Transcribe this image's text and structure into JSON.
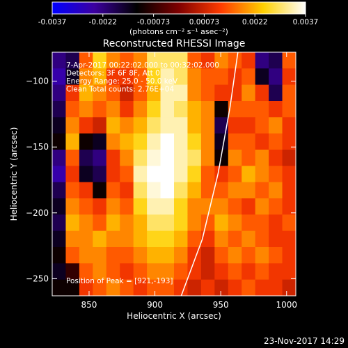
{
  "chart_data": {
    "type": "heatmap",
    "title": "Reconstructed RHESSI Image",
    "colorbar": {
      "min": -0.0037,
      "max": 0.0037,
      "tick_labels": [
        "-0.0037",
        "-0.0022",
        "-0.00073",
        "0.00073",
        "0.0022",
        "0.0037"
      ],
      "units_label": "(photons cm⁻² s⁻¹ asec⁻²)",
      "colormap": [
        "#0000ff",
        "#3c00a0",
        "#000000",
        "#7f0000",
        "#ff3c00",
        "#ffd000",
        "#ffffff"
      ]
    },
    "annotations": [
      "7-Apr-2017 00:22:02.000 to 00:32:02.000",
      "Detectors: 3F 6F 8F, Att 0",
      "Energy Range: 25.0 - 50.0 keV",
      "Clean    Total counts: 2.76E+04"
    ],
    "peak_label": "Position of Peak = [921,-193]",
    "peak": {
      "x": 921,
      "y": -193
    },
    "xlabel": "Heliocentric X (arcsec)",
    "ylabel": "Heliocentric Y (arcsec)",
    "xlim": [
      822,
      1007
    ],
    "ylim": [
      -263,
      -78
    ],
    "xticks": [
      850,
      900,
      950,
      1000
    ],
    "yticks": [
      -100,
      -150,
      -200,
      -250
    ],
    "limb_line": [
      [
        920,
        -263
      ],
      [
        936,
        -220
      ],
      [
        948,
        -170
      ],
      [
        957,
        -120
      ],
      [
        963,
        -78
      ]
    ],
    "intensity_grid": [
      [
        -0.6,
        -0.5,
        0.4,
        0.7,
        0.5,
        0.4,
        0.5,
        0.8,
        0.8,
        0.8,
        0.4,
        0.3,
        0.5,
        0.4,
        0.3,
        -0.6,
        -0.5,
        0.4
      ],
      [
        -0.7,
        -0.4,
        0.5,
        0.6,
        0.3,
        0.3,
        0.4,
        0.7,
        0.9,
        0.8,
        0.5,
        0.4,
        0.4,
        0.3,
        0.4,
        -0.4,
        -0.6,
        0.3
      ],
      [
        -0.6,
        0.3,
        0.6,
        0.5,
        0.4,
        0.2,
        0.4,
        0.6,
        0.9,
        0.9,
        0.5,
        0.4,
        0.3,
        0.3,
        0.5,
        0.3,
        -0.5,
        0.4
      ],
      [
        -0.5,
        0.4,
        0.5,
        0.4,
        0.5,
        0.3,
        0.5,
        0.7,
        0.9,
        0.8,
        0.6,
        0.5,
        -0.3,
        0.4,
        0.4,
        0.4,
        0.3,
        0.4
      ],
      [
        -0.4,
        0.5,
        0.3,
        0.2,
        0.6,
        0.5,
        0.6,
        0.8,
        0.9,
        0.9,
        0.6,
        0.5,
        -0.5,
        0.3,
        0.3,
        0.4,
        0.5,
        0.3
      ],
      [
        -0.3,
        0.6,
        -0.3,
        -0.4,
        0.5,
        0.6,
        0.7,
        0.9,
        1.0,
        0.9,
        0.7,
        0.5,
        -0.4,
        0.4,
        0.4,
        0.3,
        0.4,
        0.3
      ],
      [
        -0.6,
        0.4,
        -0.5,
        -0.6,
        0.3,
        0.5,
        0.8,
        0.95,
        1.0,
        0.9,
        0.8,
        0.5,
        -0.3,
        0.5,
        0.4,
        0.5,
        0.3,
        0.2
      ],
      [
        -0.7,
        0.3,
        -0.4,
        -0.5,
        0.3,
        0.4,
        0.9,
        1.0,
        1.0,
        0.9,
        0.7,
        0.4,
        0.3,
        0.4,
        0.6,
        0.5,
        0.4,
        0.3
      ],
      [
        -0.5,
        0.4,
        0.3,
        -0.3,
        0.4,
        0.3,
        0.8,
        0.95,
        1.0,
        0.8,
        0.6,
        0.4,
        0.4,
        0.5,
        0.5,
        0.4,
        0.5,
        0.3
      ],
      [
        -0.4,
        0.5,
        0.4,
        0.3,
        0.5,
        0.4,
        0.7,
        0.9,
        0.9,
        0.7,
        0.5,
        0.5,
        0.5,
        0.4,
        0.3,
        0.5,
        0.4,
        0.3
      ],
      [
        -0.5,
        0.6,
        0.5,
        0.4,
        0.6,
        0.5,
        0.6,
        0.8,
        0.8,
        0.7,
        0.5,
        0.4,
        0.6,
        0.5,
        0.4,
        0.4,
        0.3,
        0.4
      ],
      [
        -0.4,
        0.5,
        0.5,
        0.6,
        0.5,
        0.5,
        0.6,
        0.7,
        0.7,
        0.6,
        0.4,
        0.3,
        0.5,
        0.4,
        0.5,
        0.4,
        0.3,
        0.3
      ],
      [
        -0.3,
        0.4,
        0.5,
        0.5,
        0.4,
        0.4,
        0.5,
        0.6,
        0.6,
        0.5,
        0.3,
        0.2,
        0.4,
        0.5,
        0.4,
        0.5,
        0.4,
        0.3
      ],
      [
        -0.4,
        -0.2,
        0.4,
        0.5,
        0.4,
        0.3,
        0.4,
        0.5,
        0.5,
        0.4,
        0.3,
        0.2,
        0.3,
        0.4,
        0.3,
        0.4,
        0.3,
        0.3
      ],
      [
        -0.3,
        -0.3,
        0.3,
        0.4,
        0.5,
        0.4,
        0.3,
        0.4,
        0.4,
        0.3,
        0.2,
        0.3,
        0.2,
        0.3,
        0.4,
        0.3,
        0.3,
        0.2
      ]
    ]
  },
  "timestamp": "23-Nov-2017 14:29"
}
